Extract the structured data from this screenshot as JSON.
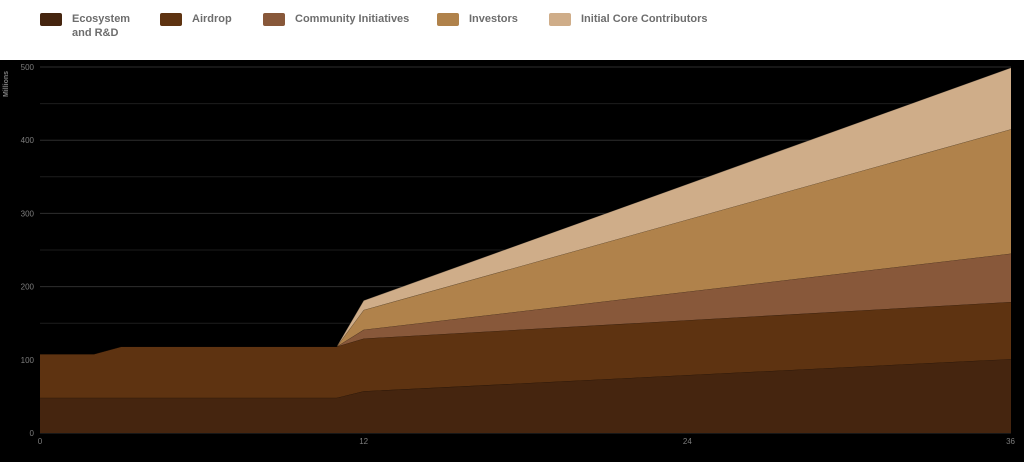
{
  "legend": [
    {
      "label": "Ecosystem\nand R&D",
      "color": "#45250f"
    },
    {
      "label": "Airdrop",
      "color": "#5e3311"
    },
    {
      "label": "Community Initiatives",
      "color": "#88583a"
    },
    {
      "label": "Investors",
      "color": "#b0824b"
    },
    {
      "label": "Initial Core Contributors",
      "color": "#cfad89"
    }
  ],
  "chart_data": {
    "type": "area",
    "stacked": true,
    "ylabel": "Millions",
    "xlabel": "",
    "xlim": [
      0,
      36
    ],
    "ylim": [
      0,
      500
    ],
    "x_ticks": [
      0,
      12,
      24,
      36
    ],
    "y_ticks": [
      0,
      100,
      200,
      300,
      400,
      500
    ],
    "grid": true,
    "legend_position": "top",
    "x": [
      0,
      2,
      3,
      11,
      12,
      36
    ],
    "series": [
      {
        "name": "Ecosystem and R&D",
        "color": "#45250f",
        "values": [
          48,
          48,
          48,
          48,
          57,
          101
        ]
      },
      {
        "name": "Airdrop",
        "color": "#5e3311",
        "values": [
          60,
          60,
          70,
          70,
          72,
          78
        ]
      },
      {
        "name": "Community Initiatives",
        "color": "#88583a",
        "values": [
          0,
          0,
          0,
          0,
          12,
          66
        ]
      },
      {
        "name": "Investors",
        "color": "#b0824b",
        "values": [
          0,
          0,
          0,
          0,
          27,
          170
        ]
      },
      {
        "name": "Initial Core Contributors",
        "color": "#cfad89",
        "values": [
          0,
          0,
          0,
          0,
          13,
          84
        ]
      }
    ]
  }
}
